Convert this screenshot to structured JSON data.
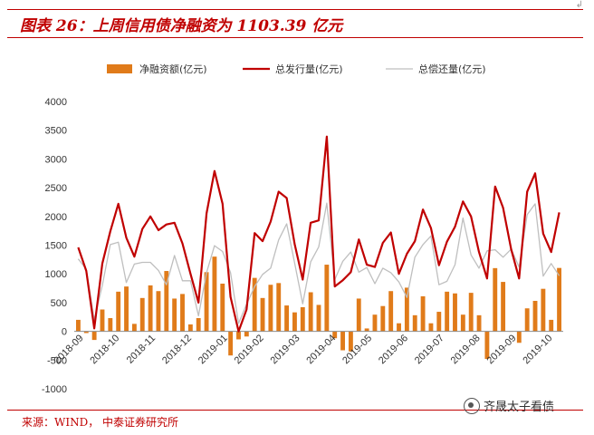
{
  "header": {
    "title": "图表 26：上周信用债净融资为 1103.39 亿元",
    "corner_mark": "↲"
  },
  "footer": {
    "source": "来源：WIND，  中泰证券研究所",
    "watermark": "齐晟太子看债"
  },
  "colors": {
    "net": "#e07b1a",
    "issuance": "#c00000",
    "repayment": "#bfbfbf",
    "rule": "#c00000"
  },
  "chart_data": {
    "type": "bar+line",
    "legend_position": "top",
    "ylim": [
      -1000,
      4000
    ],
    "yticks": [
      -1000,
      -500,
      0,
      500,
      1000,
      1500,
      2000,
      2500,
      3000,
      3500,
      4000
    ],
    "x_tick_labels": [
      "2018-09",
      "2018-10",
      "2018-11",
      "2018-12",
      "2019-01",
      "2019-02",
      "2019-03",
      "2019-04",
      "2019-05",
      "2019-06",
      "2019-07",
      "2019-08",
      "2019-09",
      "2019-10"
    ],
    "x_tick_positions": [
      0,
      4.5,
      9,
      13.5,
      18,
      22.5,
      27,
      31.5,
      36,
      40.5,
      45,
      49.5,
      54,
      58.5
    ],
    "series": [
      {
        "name": "净融资额(亿元)",
        "kind": "bar",
        "values": [
          200,
          -30,
          -150,
          380,
          230,
          690,
          780,
          130,
          580,
          800,
          700,
          1050,
          570,
          650,
          120,
          230,
          1030,
          1300,
          830,
          -420,
          -140,
          -90,
          930,
          580,
          810,
          840,
          450,
          330,
          420,
          680,
          460,
          1160,
          -120,
          -330,
          -350,
          570,
          50,
          290,
          440,
          700,
          140,
          760,
          280,
          610,
          140,
          340,
          690,
          660,
          290,
          670,
          280,
          -480,
          1100,
          860,
          0,
          -200,
          400,
          530,
          740,
          200,
          1103
        ]
      },
      {
        "name": "总发行量(亿元)",
        "kind": "line",
        "values": [
          1460,
          1050,
          50,
          1180,
          1740,
          2220,
          1630,
          1300,
          1780,
          2000,
          1760,
          1860,
          1890,
          1530,
          1000,
          500,
          2050,
          2790,
          2220,
          600,
          0,
          380,
          1710,
          1570,
          1910,
          2430,
          2320,
          1520,
          900,
          1890,
          1930,
          3390,
          780,
          890,
          1030,
          1600,
          1160,
          1120,
          1540,
          1720,
          1000,
          1350,
          1570,
          2120,
          1800,
          1150,
          1560,
          1820,
          2260,
          2000,
          1380,
          920,
          2520,
          2150,
          1430,
          920,
          2430,
          2750,
          1700,
          1380,
          2070
        ]
      },
      {
        "name": "总偿还量(亿元)",
        "kind": "line",
        "values": [
          1260,
          1080,
          200,
          800,
          1510,
          1550,
          850,
          1170,
          1200,
          1200,
          1060,
          810,
          1320,
          880,
          880,
          270,
          1020,
          1490,
          1390,
          1020,
          140,
          470,
          780,
          990,
          1100,
          1590,
          1870,
          1190,
          480,
          1210,
          1470,
          2230,
          900,
          1220,
          1380,
          1030,
          1110,
          830,
          1100,
          1020,
          860,
          590,
          1290,
          1510,
          1660,
          810,
          870,
          1160,
          1970,
          1330,
          1100,
          1400,
          1420,
          1290,
          1430,
          1120,
          2030,
          2220,
          960,
          1180,
          967
        ]
      }
    ]
  }
}
